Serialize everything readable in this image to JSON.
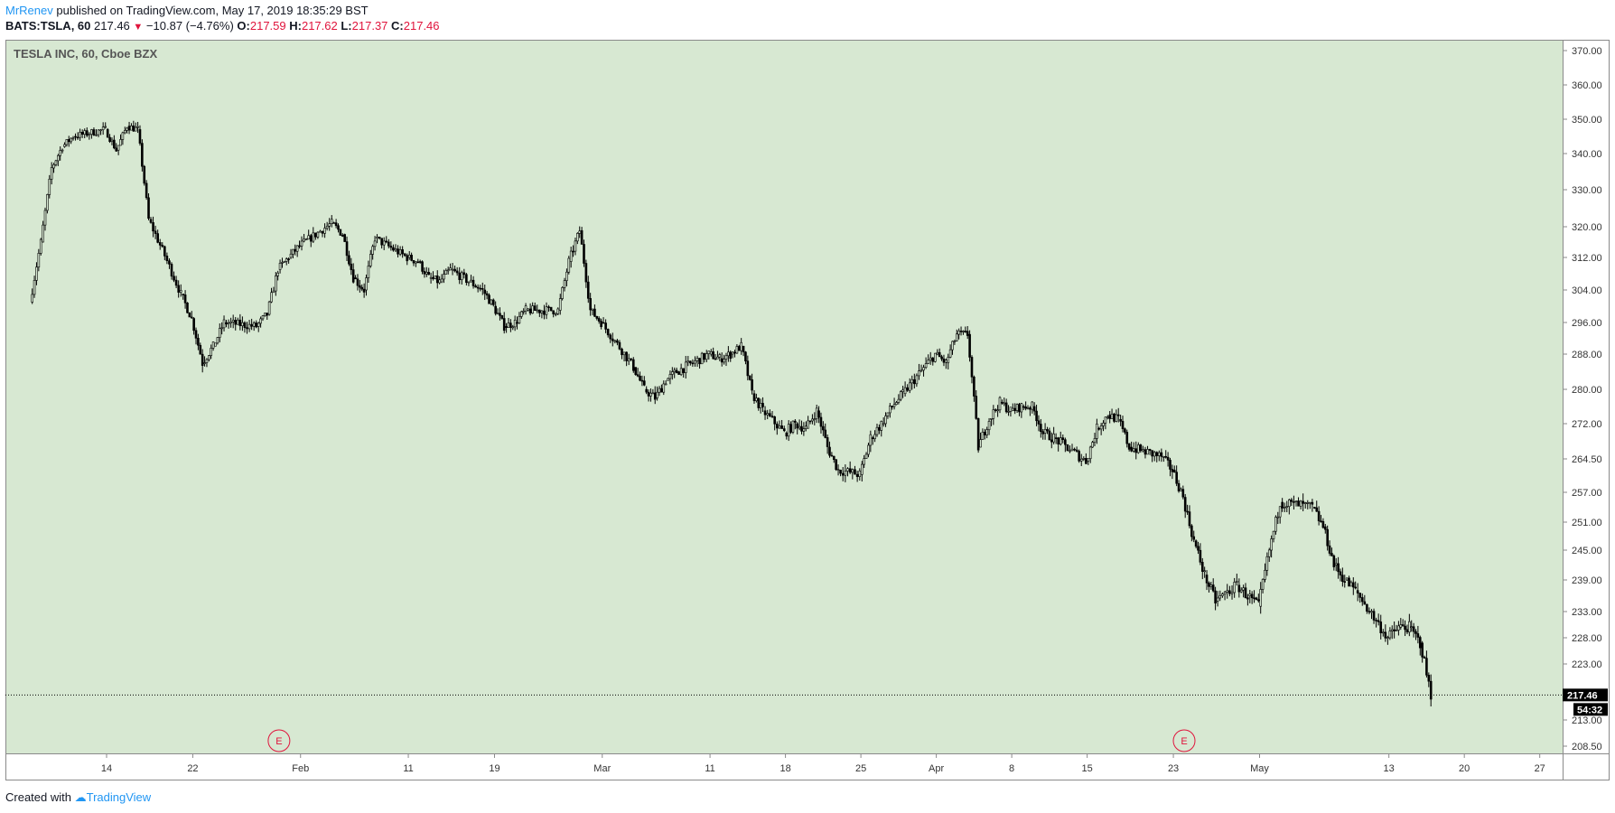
{
  "header": {
    "author": "MrRenev",
    "published_text": "published on TradingView.com, May 17, 2019 18:35:29 BST",
    "symbol": "BATS:TSLA, 60",
    "last": "217.46",
    "change": "−10.87 (−4.76%)",
    "o_label": "O:",
    "o_value": "217.59",
    "h_label": "H:",
    "h_value": "217.62",
    "l_label": "L:",
    "l_value": "217.37",
    "c_label": "C:",
    "c_value": "217.46"
  },
  "footer": {
    "created_with": "Created with",
    "brand": "TradingView"
  },
  "colors": {
    "background": "#d7e8d2",
    "candle": "#000000",
    "earnings": "#e0143c",
    "author": "#2196f3",
    "down": "#e0143c"
  },
  "chart_data": {
    "type": "candlestick",
    "title": "TESLA INC, 60, Cboe BZX",
    "y_ticks": [
      "370.00",
      "360.00",
      "350.00",
      "340.00",
      "330.00",
      "320.00",
      "312.00",
      "304.00",
      "296.00",
      "288.00",
      "280.00",
      "272.00",
      "264.50",
      "257.00",
      "251.00",
      "245.00",
      "239.00",
      "233.00",
      "228.00",
      "223.00",
      "213.00",
      "208.50"
    ],
    "ylim": [
      205,
      372
    ],
    "x_ticks": [
      "14",
      "22",
      "Feb",
      "11",
      "19",
      "Mar",
      "11",
      "18",
      "25",
      "Apr",
      "8",
      "15",
      "23",
      "May",
      "13",
      "20",
      "27"
    ],
    "last_price_label": "217.46",
    "countdown_label": "54:32",
    "earnings_markers": [
      {
        "x": "Jan 30",
        "label": "E"
      },
      {
        "x": "Apr 24",
        "label": "E"
      }
    ],
    "price_path": [
      [
        "Jan 7",
        301
      ],
      [
        "Jan 8",
        316
      ],
      [
        "Jan 9",
        336
      ],
      [
        "Jan 10",
        342
      ],
      [
        "Jan 11",
        345
      ],
      [
        "Jan 14",
        347
      ],
      [
        "Jan 15",
        341
      ],
      [
        "Jan 16",
        348
      ],
      [
        "Jan 17",
        347
      ],
      [
        "Jan 18",
        322
      ],
      [
        "Jan 21",
        303
      ],
      [
        "Jan 22",
        297
      ],
      [
        "Jan 23",
        286
      ],
      [
        "Jan 24",
        290
      ],
      [
        "Jan 25",
        296
      ],
      [
        "Jan 28",
        295
      ],
      [
        "Jan 29",
        298
      ],
      [
        "Jan 30",
        309
      ],
      [
        "Jan 31",
        312
      ],
      [
        "Feb 1",
        315
      ],
      [
        "Feb 4",
        321
      ],
      [
        "Feb 5",
        318
      ],
      [
        "Feb 6",
        307
      ],
      [
        "Feb 7",
        304
      ],
      [
        "Feb 8",
        317
      ],
      [
        "Feb 11",
        312
      ],
      [
        "Feb 12",
        311
      ],
      [
        "Feb 13",
        307
      ],
      [
        "Feb 14",
        306
      ],
      [
        "Feb 15",
        309
      ],
      [
        "Feb 18",
        304
      ],
      [
        "Feb 19",
        300
      ],
      [
        "Feb 20",
        295
      ],
      [
        "Feb 21",
        296
      ],
      [
        "Feb 22",
        299
      ],
      [
        "Feb 25",
        299
      ],
      [
        "Feb 26",
        311
      ],
      [
        "Feb 27",
        319
      ],
      [
        "Feb 28",
        299
      ],
      [
        "Mar 1",
        296
      ],
      [
        "Mar 4",
        285
      ],
      [
        "Mar 5",
        280
      ],
      [
        "Mar 6",
        278
      ],
      [
        "Mar 7",
        282
      ],
      [
        "Mar 8",
        284
      ],
      [
        "Mar 11",
        288
      ],
      [
        "Mar 12",
        287
      ],
      [
        "Mar 13",
        288
      ],
      [
        "Mar 14",
        290
      ],
      [
        "Mar 15",
        279
      ],
      [
        "Mar 16",
        275
      ],
      [
        "Mar 18",
        270
      ],
      [
        "Mar 19",
        272
      ],
      [
        "Mar 20",
        271
      ],
      [
        "Mar 21",
        275
      ],
      [
        "Mar 22",
        267
      ],
      [
        "Mar 23",
        262
      ],
      [
        "Mar 25",
        261
      ],
      [
        "Mar 26",
        269
      ],
      [
        "Mar 27",
        272
      ],
      [
        "Mar 28",
        276
      ],
      [
        "Mar 29",
        279
      ],
      [
        "Apr 1",
        288
      ],
      [
        "Apr 2",
        286
      ],
      [
        "Apr 3",
        293
      ],
      [
        "Apr 4",
        293
      ],
      [
        "Apr 5",
        267
      ],
      [
        "Apr 6",
        273
      ],
      [
        "Apr 7",
        277
      ],
      [
        "Apr 8",
        275
      ],
      [
        "Apr 9",
        276
      ],
      [
        "Apr 10",
        276
      ],
      [
        "Apr 11",
        270
      ],
      [
        "Apr 12",
        269
      ],
      [
        "Apr 15",
        264
      ],
      [
        "Apr 16",
        271
      ],
      [
        "Apr 17",
        274
      ],
      [
        "Apr 18",
        273
      ],
      [
        "Apr 19",
        267
      ],
      [
        "Apr 22",
        265
      ],
      [
        "Apr 23",
        262
      ],
      [
        "Apr 24",
        256
      ],
      [
        "Apr 25",
        247
      ],
      [
        "Apr 26",
        240
      ],
      [
        "Apr 27",
        235
      ],
      [
        "Apr 29",
        238
      ],
      [
        "Apr 30",
        236
      ],
      [
        "May 1",
        234
      ],
      [
        "May 2",
        245
      ],
      [
        "May 3",
        255
      ],
      [
        "May 6",
        254
      ],
      [
        "May 7",
        250
      ],
      [
        "May 8",
        242
      ],
      [
        "May 9",
        239
      ],
      [
        "May 10",
        237
      ],
      [
        "May 13",
        228
      ],
      [
        "May 14",
        230
      ],
      [
        "May 15",
        230
      ],
      [
        "May 16",
        227
      ],
      [
        "May 17",
        217.46
      ]
    ]
  }
}
